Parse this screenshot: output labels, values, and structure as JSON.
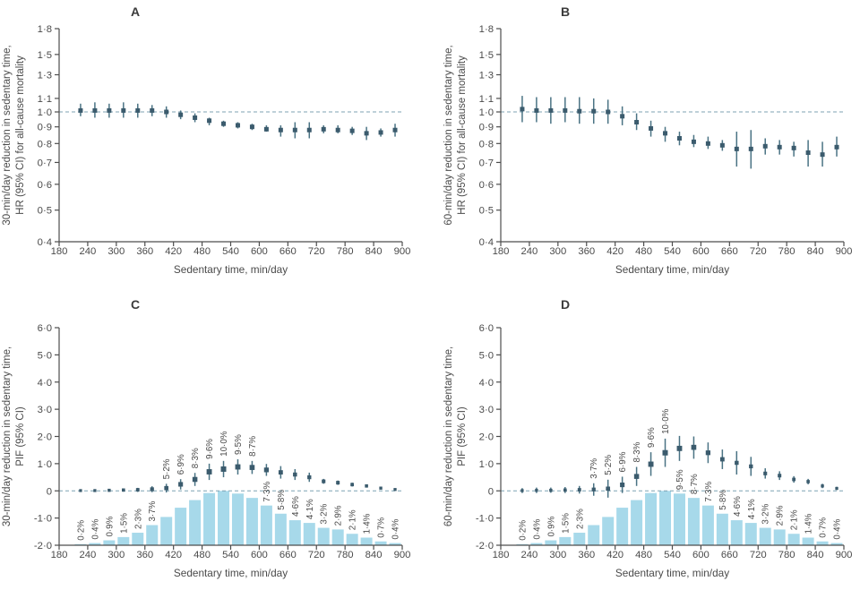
{
  "styles": {
    "marker_color": "#3b5b6d",
    "whisker_color": "#4a7384",
    "ref_line_color": "#7fa3b3",
    "bar_color": "#a7d9ea",
    "axis_color": "#4d4d4d",
    "text_color": "#4a4a4a"
  },
  "chart_data": [
    {
      "type": "scatter",
      "panel": "A",
      "ylabel_lines": [
        "30-min/day reduction in sedentary time,",
        "HR (95% CI) for all-cause mortality"
      ],
      "xlabel": "Sedentary time, min/day",
      "yscale": "log",
      "ylim": [
        0.4,
        1.8
      ],
      "refline": 1.0,
      "yticks": [
        {
          "v": 1.8,
          "t": "1·8"
        },
        {
          "v": 1.5,
          "t": "1·5"
        },
        {
          "v": 1.3,
          "t": "1·3"
        },
        {
          "v": 1.1,
          "t": "1·1"
        },
        {
          "v": 1.0,
          "t": "1·0"
        },
        {
          "v": 0.9,
          "t": "0·9"
        },
        {
          "v": 0.8,
          "t": "0·8"
        },
        {
          "v": 0.7,
          "t": "0·7"
        },
        {
          "v": 0.6,
          "t": "0·6"
        },
        {
          "v": 0.5,
          "t": "0·5"
        },
        {
          "v": 0.4,
          "t": "0·4"
        }
      ],
      "xlim": [
        180,
        900
      ],
      "xticks": [
        "180",
        "240",
        "300",
        "360",
        "420",
        "480",
        "540",
        "600",
        "660",
        "720",
        "780",
        "840",
        "900"
      ],
      "x": [
        225,
        255,
        285,
        315,
        345,
        375,
        405,
        435,
        465,
        495,
        525,
        555,
        585,
        615,
        645,
        675,
        705,
        735,
        765,
        795,
        825,
        855,
        885
      ],
      "values": [
        1.01,
        1.01,
        1.01,
        1.01,
        1.01,
        1.01,
        1.0,
        0.98,
        0.96,
        0.94,
        0.92,
        0.91,
        0.9,
        0.885,
        0.88,
        0.88,
        0.88,
        0.885,
        0.88,
        0.875,
        0.86,
        0.865,
        0.88
      ],
      "ci_lo": [
        0.97,
        0.96,
        0.96,
        0.96,
        0.96,
        0.97,
        0.96,
        0.95,
        0.93,
        0.91,
        0.9,
        0.89,
        0.88,
        0.87,
        0.84,
        0.83,
        0.83,
        0.86,
        0.86,
        0.85,
        0.82,
        0.84,
        0.84
      ],
      "ci_hi": [
        1.06,
        1.07,
        1.06,
        1.07,
        1.06,
        1.05,
        1.04,
        1.01,
        0.99,
        0.96,
        0.94,
        0.93,
        0.92,
        0.91,
        0.91,
        0.93,
        0.93,
        0.91,
        0.91,
        0.9,
        0.9,
        0.89,
        0.92
      ]
    },
    {
      "type": "scatter",
      "panel": "B",
      "ylabel_lines": [
        "60-min/day reduction in sedentary time,",
        "HR (95% CI) for all-cause mortality"
      ],
      "xlabel": "Sedentary time, min/day",
      "yscale": "log",
      "ylim": [
        0.4,
        1.8
      ],
      "refline": 1.0,
      "yticks": [
        {
          "v": 1.8,
          "t": "1·8"
        },
        {
          "v": 1.5,
          "t": "1·5"
        },
        {
          "v": 1.3,
          "t": "1·3"
        },
        {
          "v": 1.1,
          "t": "1·1"
        },
        {
          "v": 1.0,
          "t": "1·0"
        },
        {
          "v": 0.9,
          "t": "0·9"
        },
        {
          "v": 0.8,
          "t": "0·8"
        },
        {
          "v": 0.7,
          "t": "0·7"
        },
        {
          "v": 0.6,
          "t": "0·6"
        },
        {
          "v": 0.5,
          "t": "0·5"
        },
        {
          "v": 0.4,
          "t": "0·4"
        }
      ],
      "xlim": [
        180,
        900
      ],
      "xticks": [
        "180",
        "240",
        "300",
        "360",
        "420",
        "480",
        "540",
        "600",
        "660",
        "720",
        "780",
        "840",
        "900"
      ],
      "x": [
        225,
        255,
        285,
        315,
        345,
        375,
        405,
        435,
        465,
        495,
        525,
        555,
        585,
        615,
        645,
        675,
        705,
        735,
        765,
        795,
        825,
        855,
        885
      ],
      "values": [
        1.02,
        1.01,
        1.01,
        1.01,
        1.005,
        1.005,
        1.0,
        0.97,
        0.93,
        0.89,
        0.86,
        0.83,
        0.81,
        0.8,
        0.79,
        0.77,
        0.77,
        0.785,
        0.78,
        0.775,
        0.75,
        0.74,
        0.78
      ],
      "ci_lo": [
        0.93,
        0.93,
        0.92,
        0.93,
        0.92,
        0.92,
        0.92,
        0.91,
        0.88,
        0.84,
        0.81,
        0.79,
        0.78,
        0.77,
        0.76,
        0.68,
        0.67,
        0.74,
        0.74,
        0.73,
        0.68,
        0.68,
        0.73
      ],
      "ci_hi": [
        1.12,
        1.11,
        1.11,
        1.11,
        1.11,
        1.1,
        1.09,
        1.04,
        0.99,
        0.94,
        0.9,
        0.87,
        0.85,
        0.84,
        0.82,
        0.87,
        0.88,
        0.83,
        0.82,
        0.81,
        0.82,
        0.81,
        0.84
      ]
    },
    {
      "type": "scatter-with-bars",
      "panel": "C",
      "ylabel_lines": [
        "30-min/day reduction in sedentary time,",
        "PIF (95% CI)"
      ],
      "xlabel": "Sedentary time, min/day",
      "yscale": "linear",
      "ylim": [
        -2.0,
        6.0
      ],
      "refline": 0,
      "yticks": [
        {
          "v": 6,
          "t": "6·0"
        },
        {
          "v": 5,
          "t": "5·0"
        },
        {
          "v": 4,
          "t": "4·0"
        },
        {
          "v": 3,
          "t": "3·0"
        },
        {
          "v": 2,
          "t": "2·0"
        },
        {
          "v": 1,
          "t": "1·0"
        },
        {
          "v": 0,
          "t": "0"
        },
        {
          "v": -1,
          "t": "-1·0"
        },
        {
          "v": -2,
          "t": "-2·0"
        }
      ],
      "xlim": [
        180,
        900
      ],
      "xticks": [
        "180",
        "240",
        "300",
        "360",
        "420",
        "480",
        "540",
        "600",
        "660",
        "720",
        "780",
        "840",
        "900"
      ],
      "x": [
        225,
        255,
        285,
        315,
        345,
        375,
        405,
        435,
        465,
        495,
        525,
        555,
        585,
        615,
        645,
        675,
        705,
        735,
        765,
        795,
        825,
        855,
        885
      ],
      "values": [
        0.01,
        0.01,
        0.02,
        0.03,
        0.04,
        0.06,
        0.1,
        0.24,
        0.42,
        0.7,
        0.8,
        0.88,
        0.86,
        0.77,
        0.68,
        0.6,
        0.5,
        0.35,
        0.3,
        0.23,
        0.18,
        0.1,
        0.05
      ],
      "ci_lo": [
        -0.04,
        -0.04,
        -0.03,
        -0.03,
        -0.04,
        -0.05,
        -0.06,
        0.05,
        0.18,
        0.4,
        0.5,
        0.6,
        0.62,
        0.55,
        0.45,
        0.4,
        0.33,
        0.26,
        0.22,
        0.16,
        0.12,
        0.05,
        0.01
      ],
      "ci_hi": [
        0.05,
        0.06,
        0.07,
        0.09,
        0.11,
        0.17,
        0.26,
        0.43,
        0.66,
        1.0,
        1.1,
        1.16,
        1.1,
        0.99,
        0.91,
        0.8,
        0.67,
        0.44,
        0.38,
        0.3,
        0.24,
        0.15,
        0.09
      ],
      "bars_pct": [
        0.2,
        0.4,
        0.9,
        1.5,
        2.3,
        3.7,
        5.2,
        6.9,
        8.3,
        9.6,
        10.0,
        9.5,
        8.7,
        7.3,
        5.8,
        4.6,
        4.1,
        3.2,
        2.9,
        2.1,
        1.4,
        0.7,
        0.4
      ],
      "pct_labels": [
        "0·2%",
        "0·4%",
        "0·9%",
        "1·5%",
        "2·3%",
        "3·7%",
        "5·2%",
        "6·9%",
        "8·3%",
        "9·6%",
        "10·0%",
        "9·5%",
        "8·7%",
        "7·3%",
        "5·8%",
        "4·6%",
        "4·1%",
        "3·2%",
        "2·9%",
        "2·1%",
        "1·4%",
        "0·7%",
        "0·4%"
      ],
      "label_pos": [
        "below",
        "below",
        "below",
        "below",
        "below",
        "below",
        "above",
        "above",
        "above",
        "above",
        "above",
        "above",
        "above",
        "below",
        "below",
        "below",
        "below",
        "below",
        "below",
        "below",
        "below",
        "below",
        "below"
      ]
    },
    {
      "type": "scatter-with-bars",
      "panel": "D",
      "ylabel_lines": [
        "60-min/day reduction in sedentary time,",
        "PIF (95% CI)"
      ],
      "xlabel": "Sedentary time, min/day",
      "yscale": "linear",
      "ylim": [
        -2.0,
        6.0
      ],
      "refline": 0,
      "yticks": [
        {
          "v": 6,
          "t": "6·0"
        },
        {
          "v": 5,
          "t": "5·0"
        },
        {
          "v": 4,
          "t": "4·0"
        },
        {
          "v": 3,
          "t": "3·0"
        },
        {
          "v": 2,
          "t": "2·0"
        },
        {
          "v": 1,
          "t": "1·0"
        },
        {
          "v": 0,
          "t": "0"
        },
        {
          "v": -1,
          "t": "-1·0"
        },
        {
          "v": -2,
          "t": "-2·0"
        }
      ],
      "xlim": [
        180,
        900
      ],
      "xticks": [
        "180",
        "240",
        "300",
        "360",
        "420",
        "480",
        "540",
        "600",
        "660",
        "720",
        "780",
        "840",
        "900"
      ],
      "x": [
        225,
        255,
        285,
        315,
        345,
        375,
        405,
        435,
        465,
        495,
        525,
        555,
        585,
        615,
        645,
        675,
        705,
        735,
        765,
        795,
        825,
        855,
        885
      ],
      "values": [
        0.01,
        0.02,
        0.02,
        0.03,
        0.04,
        0.05,
        0.08,
        0.22,
        0.53,
        0.98,
        1.4,
        1.56,
        1.6,
        1.4,
        1.16,
        1.03,
        0.9,
        0.64,
        0.56,
        0.42,
        0.34,
        0.18,
        0.09
      ],
      "ci_lo": [
        -0.08,
        -0.08,
        -0.07,
        -0.08,
        -0.1,
        -0.18,
        -0.25,
        -0.08,
        0.18,
        0.55,
        0.88,
        1.1,
        1.18,
        1.02,
        0.8,
        0.6,
        0.55,
        0.45,
        0.4,
        0.3,
        0.24,
        0.1,
        0.03
      ],
      "ci_hi": [
        0.1,
        0.12,
        0.12,
        0.14,
        0.18,
        0.28,
        0.41,
        0.52,
        0.88,
        1.42,
        1.92,
        2.02,
        2.0,
        1.78,
        1.52,
        1.46,
        1.25,
        0.83,
        0.72,
        0.54,
        0.44,
        0.26,
        0.15
      ],
      "bars_pct": [
        0.2,
        0.4,
        0.9,
        1.5,
        2.3,
        3.7,
        5.2,
        6.9,
        8.3,
        9.6,
        10.0,
        9.5,
        8.7,
        7.3,
        5.8,
        4.6,
        4.1,
        3.2,
        2.9,
        2.1,
        1.4,
        0.7,
        0.4
      ],
      "pct_labels": [
        "0·2%",
        "0·4%",
        "0·9%",
        "1·5%",
        "2·3%",
        "3·7%",
        "5·2%",
        "6·9%",
        "8·3%",
        "9·6%",
        "10·0%",
        "9·5%",
        "8·7%",
        "7·3%",
        "5·8%",
        "4·6%",
        "4·1%",
        "3·2%",
        "2·9%",
        "2·1%",
        "1·4%",
        "0·7%",
        "0·4%"
      ],
      "label_pos": [
        "below",
        "below",
        "below",
        "below",
        "below",
        "above",
        "above",
        "above",
        "above",
        "above",
        "above",
        "below",
        "below",
        "below",
        "below",
        "below",
        "below",
        "below",
        "below",
        "below",
        "below",
        "below",
        "below"
      ]
    }
  ]
}
